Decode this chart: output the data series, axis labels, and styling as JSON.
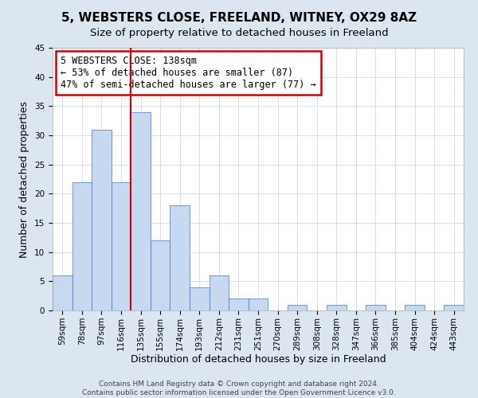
{
  "title": "5, WEBSTERS CLOSE, FREELAND, WITNEY, OX29 8AZ",
  "subtitle": "Size of property relative to detached houses in Freeland",
  "xlabel": "Distribution of detached houses by size in Freeland",
  "ylabel": "Number of detached properties",
  "footer_lines": [
    "Contains HM Land Registry data © Crown copyright and database right 2024.",
    "Contains public sector information licensed under the Open Government Licence v3.0."
  ],
  "bin_labels": [
    "59sqm",
    "78sqm",
    "97sqm",
    "116sqm",
    "135sqm",
    "155sqm",
    "174sqm",
    "193sqm",
    "212sqm",
    "231sqm",
    "251sqm",
    "270sqm",
    "289sqm",
    "308sqm",
    "328sqm",
    "347sqm",
    "366sqm",
    "385sqm",
    "404sqm",
    "424sqm",
    "443sqm"
  ],
  "bar_heights": [
    6,
    22,
    31,
    22,
    34,
    12,
    18,
    4,
    6,
    2,
    2,
    0,
    1,
    0,
    1,
    0,
    1,
    0,
    1,
    0,
    1
  ],
  "bar_color": "#c6d9f0",
  "bar_edge_color": "#4472c4",
  "property_line_index": 4,
  "property_line_color": "#cc0000",
  "annotation_box_text": "5 WEBSTERS CLOSE: 138sqm\n← 53% of detached houses are smaller (87)\n47% of semi-detached houses are larger (77) →",
  "annotation_box_color": "#cc0000",
  "annotation_box_bg": "#ffffff",
  "ylim": [
    0,
    45
  ],
  "yticks": [
    0,
    5,
    10,
    15,
    20,
    25,
    30,
    35,
    40,
    45
  ],
  "bg_color": "#dce6f1",
  "plot_bg_color": "#ffffff",
  "grid_color": "#c8d4e3",
  "title_fontsize": 11,
  "subtitle_fontsize": 9.5,
  "axis_label_fontsize": 9,
  "tick_fontsize": 7.5,
  "annotation_fontsize": 8.5,
  "footer_fontsize": 6.5
}
